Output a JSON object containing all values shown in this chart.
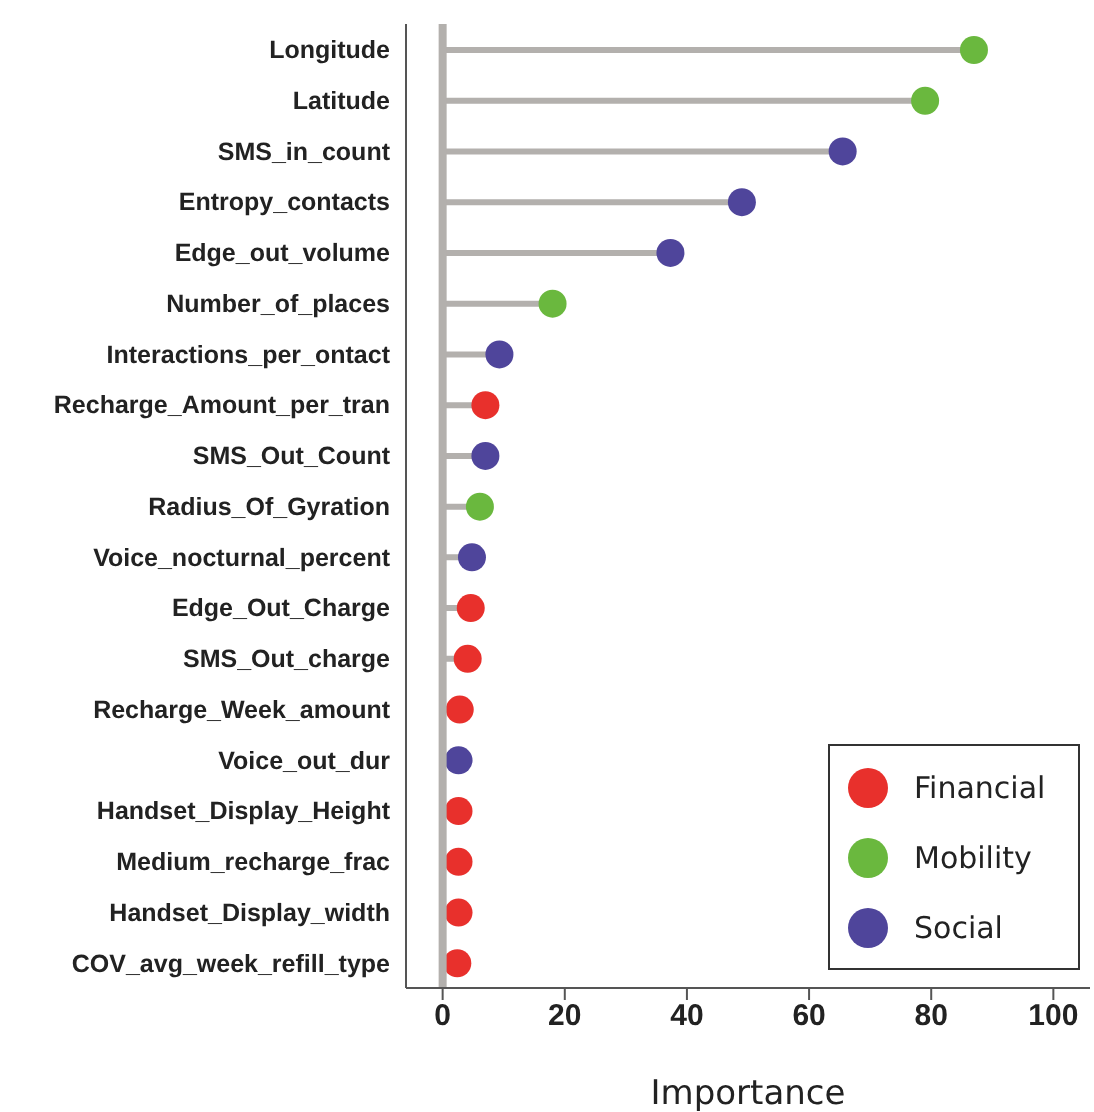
{
  "chart_data": {
    "type": "lollipop",
    "orientation": "horizontal",
    "xlabel": "Importance",
    "categories": [
      "Longitude",
      "Latitude",
      "SMS_in_count",
      "Entropy_contacts",
      "Edge_out_volume",
      "Number_of_places",
      "Interactions_per_ontact",
      "Recharge_Amount_per_tran",
      "SMS_Out_Count",
      "Radius_Of_Gyration",
      "Voice_nocturnal_percent",
      "Edge_Out_Charge",
      "SMS_Out_charge",
      "Recharge_Week_amount",
      "Voice_out_dur",
      "Handset_Display_Height",
      "Medium_recharge_frac",
      "Handset_Display_width",
      "COV_avg_week_refill_type"
    ],
    "series": [
      {
        "name": "Financial",
        "color": "#e8302c",
        "values": [
          null,
          null,
          null,
          null,
          null,
          null,
          null,
          7.0,
          null,
          null,
          null,
          4.6,
          4.1,
          2.8,
          null,
          2.6,
          2.6,
          2.6,
          2.4
        ]
      },
      {
        "name": "Mobility",
        "color": "#6ab83e",
        "values": [
          87,
          79,
          null,
          null,
          null,
          18,
          null,
          null,
          null,
          6.1,
          null,
          null,
          null,
          null,
          null,
          null,
          null,
          null,
          null
        ]
      },
      {
        "name": "Social",
        "color": "#4f459b",
        "values": [
          null,
          null,
          65.5,
          49,
          37.3,
          null,
          9.3,
          null,
          7.0,
          null,
          4.8,
          null,
          null,
          null,
          2.6,
          null,
          null,
          null,
          null
        ]
      }
    ],
    "xlim": [
      -6,
      106
    ],
    "xticks": [
      0,
      20,
      40,
      60,
      80,
      100
    ],
    "ref_lines": [
      {
        "axis": "x",
        "value": 0,
        "color": "#b3b0ad"
      }
    ],
    "legend": "bottom right",
    "marker": "circle"
  }
}
